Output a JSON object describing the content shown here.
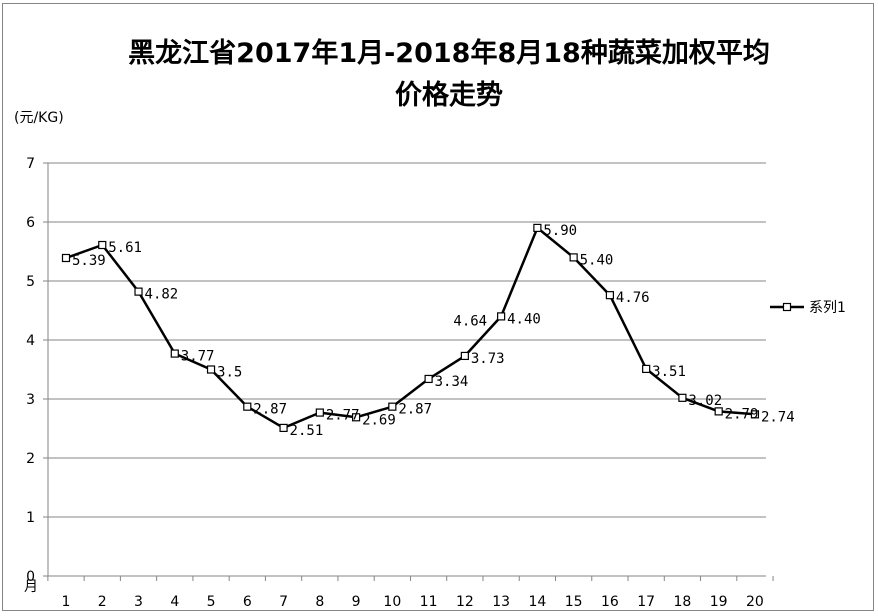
{
  "chart_data": {
    "type": "line",
    "title_line1": "黑龙江省2017年1月-2018年8月18种蔬菜加权平均",
    "title_line2": "价格走势",
    "ylabel": "(元/KG)",
    "xlabel": "月",
    "ylim": [
      0,
      7
    ],
    "yticks": [
      "0",
      "1",
      "2",
      "3",
      "4",
      "5",
      "6",
      "7"
    ],
    "categories": [
      "1",
      "2",
      "3",
      "4",
      "5",
      "6",
      "7",
      "8",
      "9",
      "10",
      "11",
      "12",
      "13",
      "14",
      "15",
      "16",
      "17",
      "18",
      "19",
      "20"
    ],
    "series": [
      {
        "name": "系列1",
        "values": [
          5.39,
          5.61,
          4.82,
          3.77,
          3.5,
          2.87,
          2.51,
          2.77,
          2.69,
          2.87,
          3.34,
          3.73,
          4.4,
          5.9,
          5.4,
          4.76,
          3.51,
          3.02,
          2.79,
          2.74
        ],
        "labels": [
          "5.39",
          "5.61",
          "4.82",
          "3.77",
          "3.5",
          "2.87",
          "2.51",
          "2.77",
          "2.69",
          "2.87",
          "3.34",
          "3.73",
          "4.40",
          "5.90",
          "5.40",
          "4.76",
          "3.51",
          "3.02",
          "2.79",
          "2.74"
        ]
      }
    ],
    "extra_annotations": [
      {
        "text": "4.64",
        "near_category": "13"
      }
    ],
    "grid": true,
    "legend": "right"
  }
}
